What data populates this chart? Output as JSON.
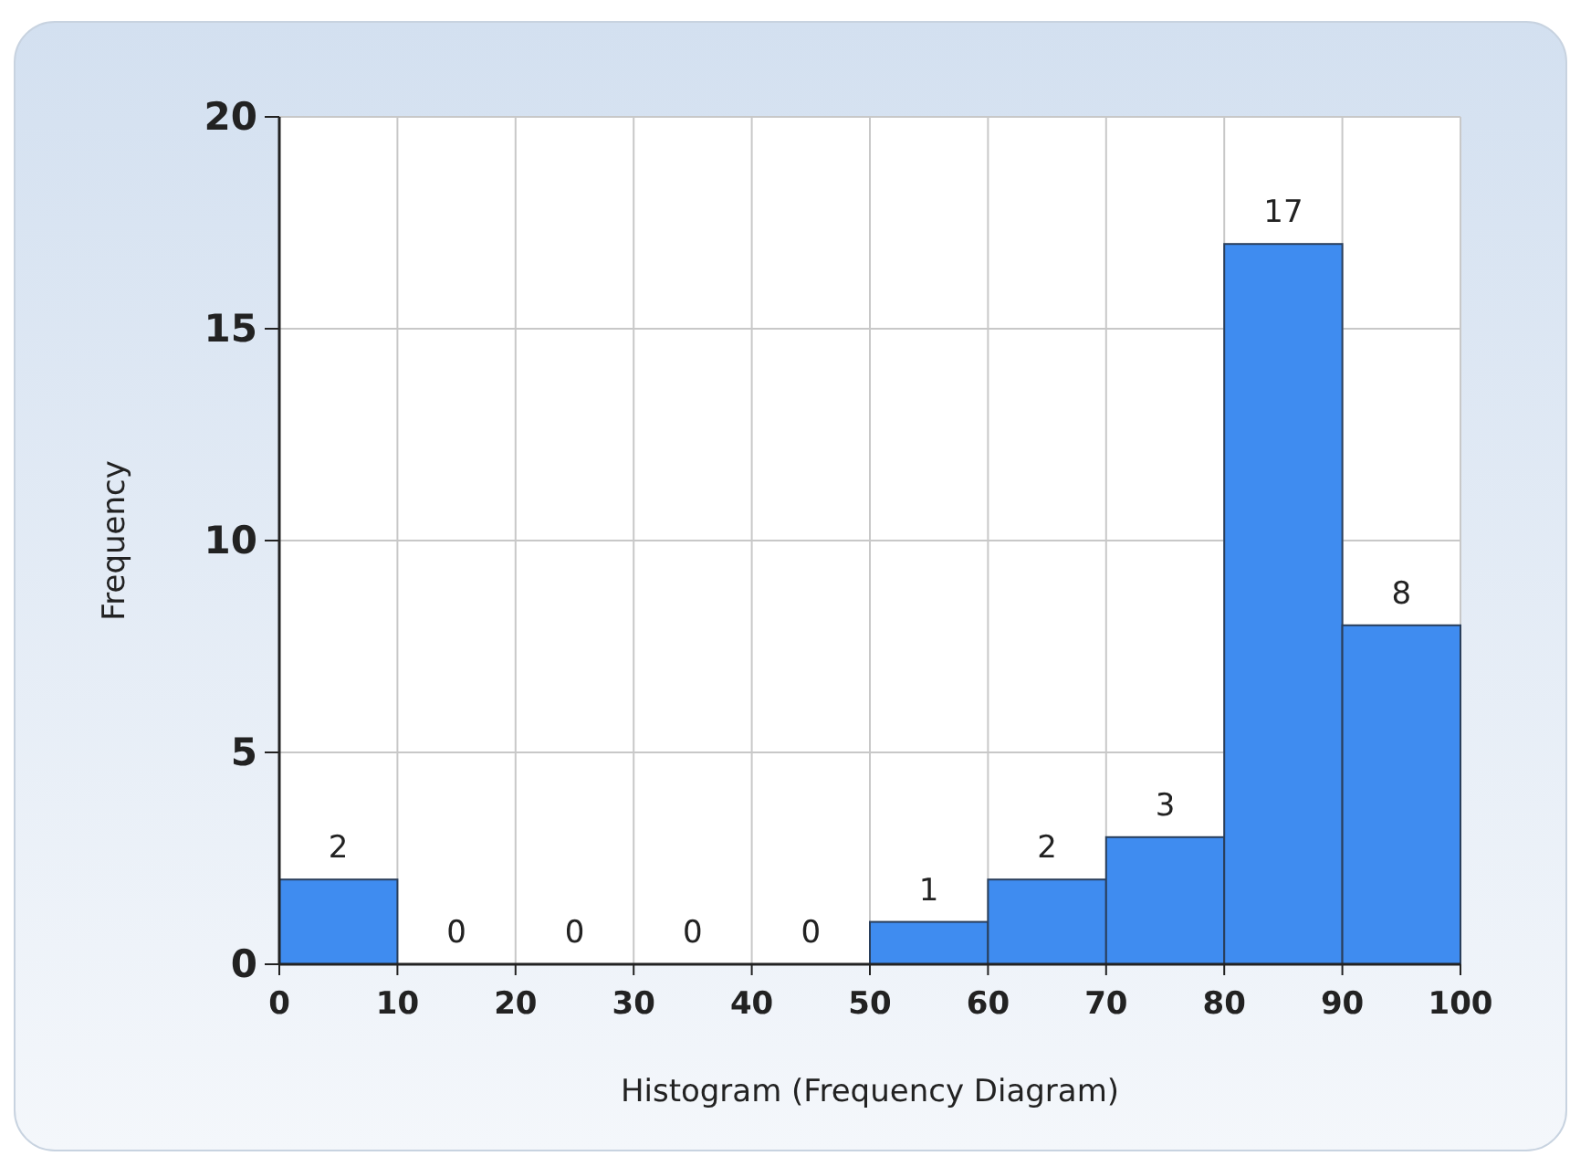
{
  "chart_data": {
    "type": "histogram",
    "xlabel": "Histogram (Frequency Diagram)",
    "ylabel": "Frequency",
    "bins": [
      0,
      10,
      20,
      30,
      40,
      50,
      60,
      70,
      80,
      90,
      100
    ],
    "values": [
      2,
      0,
      0,
      0,
      0,
      1,
      2,
      3,
      17,
      8
    ],
    "color": "#3f8cf0",
    "xlim": [
      0,
      100
    ],
    "xticks": [
      0,
      10,
      20,
      30,
      40,
      50,
      60,
      70,
      80,
      90,
      100
    ],
    "ylim": [
      0,
      20
    ],
    "yticks": [
      0,
      5,
      10,
      15,
      20
    ],
    "grid": true,
    "data_labels": true
  }
}
